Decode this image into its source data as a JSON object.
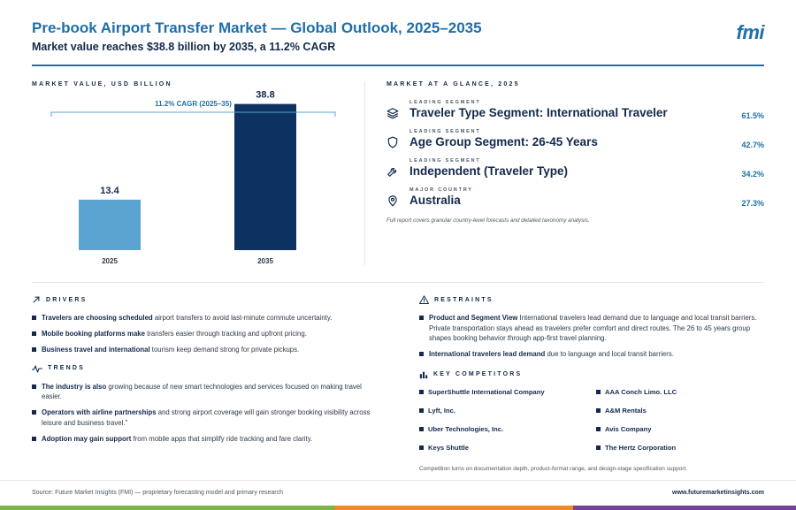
{
  "header": {
    "title": "Pre-book Airport Transfer Market — Global Outlook, 2025–2035",
    "subtitle": "Market value reaches $38.8 billion by 2035, a 11.2% CAGR",
    "logo": "fmi"
  },
  "chart_data": {
    "type": "bar",
    "title": "MARKET VALUE, USD BILLION",
    "categories": [
      "2025",
      "2035"
    ],
    "values": [
      13.4,
      38.8
    ],
    "value_labels": [
      "13.4",
      "38.8"
    ],
    "colors": [
      "#5ba3d0",
      "#0d3161"
    ],
    "annotation": "11.2% CAGR (2025–35)",
    "ylim": [
      0,
      42
    ],
    "grid": false,
    "xlabel": "",
    "ylabel": ""
  },
  "glance": {
    "title": "MARKET AT A GLANCE, 2025",
    "items": [
      {
        "kicker": "LEADING SEGMENT",
        "name": "Traveler Type Segment: International Traveler",
        "pct": "61.5%",
        "icon": "layers-icon"
      },
      {
        "kicker": "LEADING SEGMENT",
        "name": "Age Group Segment: 26-45 Years",
        "pct": "42.7%",
        "icon": "shield-icon"
      },
      {
        "kicker": "LEADING SEGMENT",
        "name": "Independent (Traveler Type)",
        "pct": "34.2%",
        "icon": "wrench-icon"
      },
      {
        "kicker": "MAJOR COUNTRY",
        "name": "Australia",
        "pct": "27.3%",
        "icon": "map-pin-icon"
      }
    ],
    "note": "Full report covers granular country-level forecasts and detailed taxonomy analysis."
  },
  "drivers": {
    "title": "DRIVERS",
    "items": [
      {
        "lead": "Travelers are choosing scheduled",
        "rest": " airport transfers to avoid last-minute commute uncertainty."
      },
      {
        "lead": "Mobile booking platforms make",
        "rest": " transfers easier through tracking and upfront pricing."
      },
      {
        "lead": "Business travel and international",
        "rest": " tourism keep demand strong for private pickups."
      }
    ]
  },
  "trends": {
    "title": "TRENDS",
    "items": [
      {
        "lead": "The industry is also",
        "rest": " growing because of new smart technologies and services focused on making travel easier."
      },
      {
        "lead": "Operators with airline partnerships",
        "rest": " and strong airport coverage will gain stronger booking visibility across leisure and business travel.”"
      },
      {
        "lead": "Adoption may gain support",
        "rest": " from mobile apps that simplify ride tracking and fare clarity."
      }
    ]
  },
  "restraints": {
    "title": "RESTRAINTS",
    "items": [
      {
        "lead": "Product and Segment View",
        "rest": " International travelers lead demand due to language and local transit barriers. Private transportation stays ahead as travelers prefer comfort and direct routes. The 26 to 45 years group shapes booking behavior through app-first travel planning."
      },
      {
        "lead": "International travelers lead demand",
        "rest": " due to language and local transit barriers."
      }
    ]
  },
  "competitors": {
    "title": "KEY COMPETITORS",
    "items": [
      "SuperShuttle International Company",
      "AAA Conch Limo. LLC",
      "Lyft, Inc.",
      "A&M Rentals",
      "Uber Technologies, Inc.",
      "Avis Company",
      "Keys Shuttle",
      "The Hertz Corporation"
    ],
    "note": "Competition turns on documentation depth, product-format range, and design-stage specification support."
  },
  "footer": {
    "source": "Source: Future Market Insights (FMI) — proprietary forecasting model and primary research",
    "url": "www.futuremarketinsights.com",
    "stripe_colors": [
      "#7ab648",
      "#f08a24",
      "#7b3f98"
    ]
  }
}
